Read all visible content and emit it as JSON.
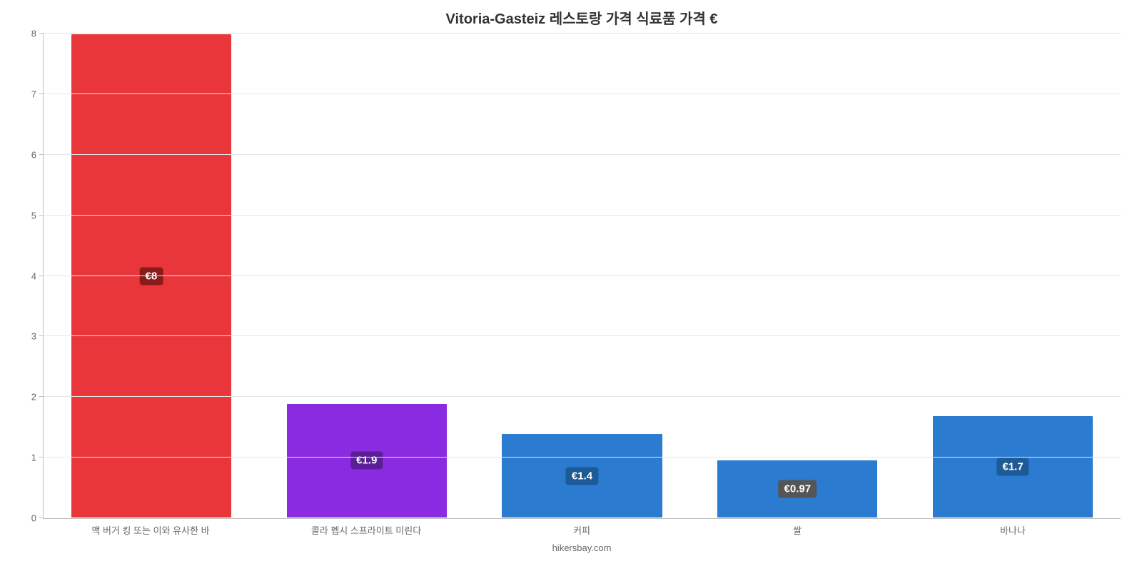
{
  "chart": {
    "type": "bar",
    "title": "Vitoria-Gasteiz 레스토랑 가격 식료품 가격 €",
    "title_fontsize": 20,
    "title_color": "#333333",
    "background_color": "#ffffff",
    "grid_color": "#e6e6e6",
    "axis_color": "#c0c0c0",
    "tick_label_color": "#666666",
    "tick_label_fontsize": 13,
    "x_label_fontsize": 13,
    "bar_label_fontsize": 15,
    "bar_label_color": "#ffffff",
    "bar_label_radius": 4,
    "ylim": [
      0,
      8
    ],
    "ytick_step": 1,
    "bar_width_pct": 75,
    "credit": "hikersbay.com",
    "credit_fontsize": 13,
    "credit_color": "#666666",
    "categories": [
      "맥 버거 킹 또는 이와 유사한 바",
      "콜라 펩시 스프라이트 미린다",
      "커피",
      "쌀",
      "바나나"
    ],
    "values": [
      8,
      1.9,
      1.4,
      0.97,
      1.7
    ],
    "value_labels": [
      "€8",
      "€1.9",
      "€1.4",
      "€0.97",
      "€1.7"
    ],
    "bar_colors": [
      "#e8363b",
      "#8a2be2",
      "#2b7bd1",
      "#2b7bd1",
      "#2b7bd1"
    ],
    "bar_border_colors": [
      "#ffffff",
      "#ffffff",
      "#ffffff",
      "#ffffff",
      "#ffffff"
    ],
    "label_bg_colors": [
      "#8b1a1a",
      "#5a1e96",
      "#1e5a96",
      "#555555",
      "#1e5a96"
    ]
  }
}
